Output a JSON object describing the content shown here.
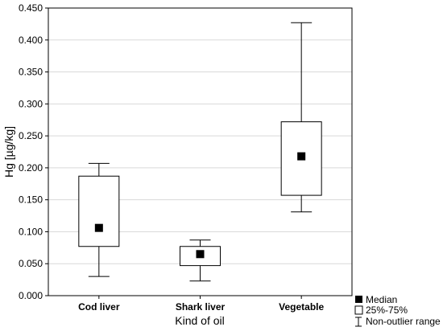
{
  "chart_data": {
    "type": "box",
    "xlabel": "Kind of oil",
    "ylabel": "Hg [µg/kg]",
    "ylim": [
      0,
      0.45
    ],
    "yticks": [
      "0.000",
      "0.050",
      "0.100",
      "0.150",
      "0.200",
      "0.250",
      "0.300",
      "0.350",
      "0.400",
      "0.450"
    ],
    "grid": true,
    "categories": [
      "Cod liver",
      "Shark liver",
      "Vegetable"
    ],
    "boxes": [
      {
        "category": "Cod liver",
        "min": 0.03,
        "q1": 0.077,
        "median": 0.106,
        "q3": 0.187,
        "max": 0.207
      },
      {
        "category": "Shark liver",
        "min": 0.023,
        "q1": 0.047,
        "median": 0.065,
        "q3": 0.077,
        "max": 0.087
      },
      {
        "category": "Vegetable",
        "min": 0.131,
        "q1": 0.157,
        "median": 0.218,
        "q3": 0.272,
        "max": 0.427
      }
    ],
    "legend": {
      "position": "bottom-right",
      "items": [
        {
          "label": "Median",
          "symbol": "filled-square"
        },
        {
          "label": "25%-75%",
          "symbol": "open-box"
        },
        {
          "label": "Non-outlier range",
          "symbol": "whisker"
        }
      ]
    },
    "colors": {
      "box_fill": "#ffffff",
      "stroke": "#000000",
      "grid": "#d9d9d9",
      "median": "#000000"
    }
  }
}
